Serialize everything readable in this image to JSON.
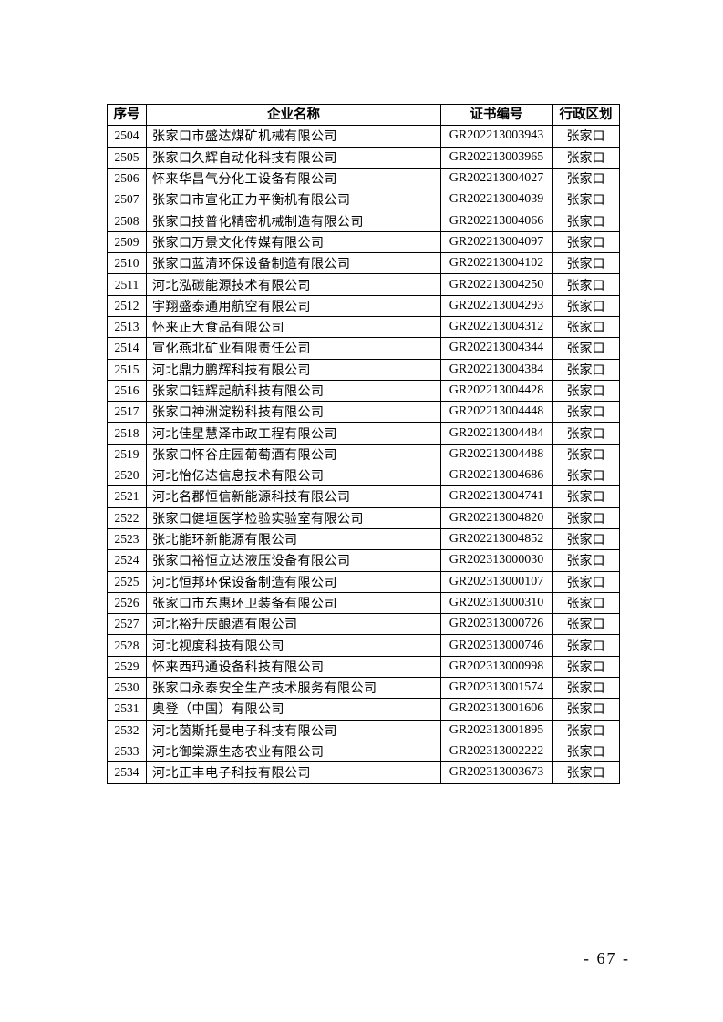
{
  "table": {
    "headers": [
      "序号",
      "企业名称",
      "证书编号",
      "行政区划"
    ],
    "rows": [
      [
        "2504",
        "张家口市盛达煤矿机械有限公司",
        "GR202213003943",
        "张家口"
      ],
      [
        "2505",
        "张家口久辉自动化科技有限公司",
        "GR202213003965",
        "张家口"
      ],
      [
        "2506",
        "怀来华昌气分化工设备有限公司",
        "GR202213004027",
        "张家口"
      ],
      [
        "2507",
        "张家口市宣化正力平衡机有限公司",
        "GR202213004039",
        "张家口"
      ],
      [
        "2508",
        "张家口技普化精密机械制造有限公司",
        "GR202213004066",
        "张家口"
      ],
      [
        "2509",
        "张家口万景文化传媒有限公司",
        "GR202213004097",
        "张家口"
      ],
      [
        "2510",
        "张家口蓝清环保设备制造有限公司",
        "GR202213004102",
        "张家口"
      ],
      [
        "2511",
        "河北泓碳能源技术有限公司",
        "GR202213004250",
        "张家口"
      ],
      [
        "2512",
        "宇翔盛泰通用航空有限公司",
        "GR202213004293",
        "张家口"
      ],
      [
        "2513",
        "怀来正大食品有限公司",
        "GR202213004312",
        "张家口"
      ],
      [
        "2514",
        "宣化燕北矿业有限责任公司",
        "GR202213004344",
        "张家口"
      ],
      [
        "2515",
        "河北鼎力鹏辉科技有限公司",
        "GR202213004384",
        "张家口"
      ],
      [
        "2516",
        "张家口钰辉起航科技有限公司",
        "GR202213004428",
        "张家口"
      ],
      [
        "2517",
        "张家口神洲淀粉科技有限公司",
        "GR202213004448",
        "张家口"
      ],
      [
        "2518",
        "河北佳星慧泽市政工程有限公司",
        "GR202213004484",
        "张家口"
      ],
      [
        "2519",
        "张家口怀谷庄园葡萄酒有限公司",
        "GR202213004488",
        "张家口"
      ],
      [
        "2520",
        "河北怡亿达信息技术有限公司",
        "GR202213004686",
        "张家口"
      ],
      [
        "2521",
        "河北名郡恒信新能源科技有限公司",
        "GR202213004741",
        "张家口"
      ],
      [
        "2522",
        "张家口健垣医学检验实验室有限公司",
        "GR202213004820",
        "张家口"
      ],
      [
        "2523",
        "张北能环新能源有限公司",
        "GR202213004852",
        "张家口"
      ],
      [
        "2524",
        "张家口裕恒立达液压设备有限公司",
        "GR202313000030",
        "张家口"
      ],
      [
        "2525",
        "河北恒邦环保设备制造有限公司",
        "GR202313000107",
        "张家口"
      ],
      [
        "2526",
        "张家口市东惠环卫装备有限公司",
        "GR202313000310",
        "张家口"
      ],
      [
        "2527",
        "河北裕升庆酿酒有限公司",
        "GR202313000726",
        "张家口"
      ],
      [
        "2528",
        "河北视度科技有限公司",
        "GR202313000746",
        "张家口"
      ],
      [
        "2529",
        "怀来西玛通设备科技有限公司",
        "GR202313000998",
        "张家口"
      ],
      [
        "2530",
        "张家口永泰安全生产技术服务有限公司",
        "GR202313001574",
        "张家口"
      ],
      [
        "2531",
        "奥登（中国）有限公司",
        "GR202313001606",
        "张家口"
      ],
      [
        "2532",
        "河北茵斯托曼电子科技有限公司",
        "GR202313001895",
        "张家口"
      ],
      [
        "2533",
        "河北御棠源生态农业有限公司",
        "GR202313002222",
        "张家口"
      ],
      [
        "2534",
        "河北正丰电子科技有限公司",
        "GR202313003673",
        "张家口"
      ]
    ]
  },
  "footer": {
    "page_number": "- 67 -"
  }
}
